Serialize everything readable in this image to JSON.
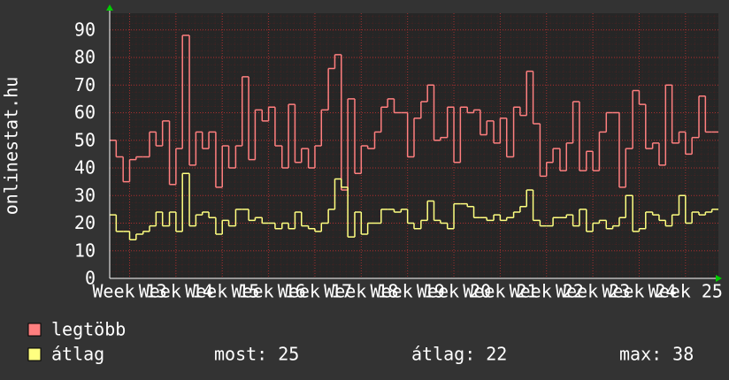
{
  "chart_data": {
    "type": "line",
    "step": true,
    "y_label": "onlinestat.hu",
    "x": [
      12.57,
      12.71,
      12.86,
      13.0,
      13.14,
      13.29,
      13.43,
      13.57,
      13.71,
      13.86,
      14.0,
      14.14,
      14.29,
      14.43,
      14.57,
      14.71,
      14.86,
      15.0,
      15.14,
      15.29,
      15.43,
      15.57,
      15.71,
      15.86,
      16.0,
      16.14,
      16.29,
      16.43,
      16.57,
      16.71,
      16.86,
      17.0,
      17.14,
      17.29,
      17.43,
      17.57,
      17.71,
      17.86,
      18.0,
      18.14,
      18.29,
      18.43,
      18.57,
      18.71,
      18.86,
      19.0,
      19.14,
      19.29,
      19.43,
      19.57,
      19.71,
      19.86,
      20.0,
      20.14,
      20.29,
      20.43,
      20.57,
      20.71,
      20.86,
      21.0,
      21.14,
      21.29,
      21.43,
      21.57,
      21.71,
      21.86,
      22.0,
      22.14,
      22.29,
      22.43,
      22.57,
      22.71,
      22.86,
      23.0,
      23.14,
      23.29,
      23.43,
      23.57,
      23.71,
      23.86,
      24.0,
      24.14,
      24.29,
      24.43,
      24.57,
      24.71,
      24.86,
      25.0,
      25.14,
      25.29,
      25.43,
      25.57
    ],
    "series": [
      {
        "name": "legtöbb",
        "color": "#ff7f7f",
        "values": [
          50,
          44,
          35,
          43,
          44,
          44,
          53,
          48,
          57,
          34,
          47,
          88,
          41,
          53,
          47,
          53,
          33,
          48,
          40,
          48,
          73,
          43,
          61,
          57,
          62,
          48,
          40,
          63,
          42,
          47,
          40,
          48,
          61,
          76,
          81,
          32,
          65,
          38,
          48,
          47,
          53,
          62,
          65,
          60,
          60,
          44,
          58,
          64,
          70,
          50,
          51,
          62,
          42,
          62,
          60,
          61,
          52,
          57,
          49,
          58,
          44,
          62,
          59,
          75,
          56,
          37,
          42,
          47,
          39,
          49,
          64,
          39,
          46,
          39,
          53,
          60,
          60,
          33,
          47,
          68,
          63,
          47,
          49,
          41,
          70,
          49,
          53,
          45,
          51,
          66,
          53,
          53
        ]
      },
      {
        "name": "átlag",
        "color": "#ffff80",
        "values": [
          23,
          17,
          17,
          14,
          16,
          17,
          19,
          24,
          19,
          24,
          17,
          38,
          19,
          23,
          24,
          22,
          16,
          21,
          19,
          25,
          25,
          21,
          22,
          20,
          20,
          18,
          20,
          18,
          24,
          19,
          18,
          17,
          20,
          25,
          36,
          33,
          15,
          24,
          16,
          20,
          20,
          25,
          25,
          24,
          25,
          20,
          18,
          21,
          28,
          21,
          20,
          18,
          27,
          27,
          26,
          22,
          22,
          21,
          23,
          21,
          22,
          24,
          26,
          32,
          21,
          19,
          19,
          22,
          22,
          23,
          19,
          25,
          17,
          20,
          21,
          18,
          19,
          22,
          30,
          17,
          18,
          24,
          23,
          21,
          19,
          23,
          30,
          20,
          24,
          23,
          24,
          25
        ]
      }
    ],
    "xlim": [
      12.57,
      25.71
    ],
    "ylim": [
      0,
      96
    ],
    "yticks": [
      0,
      10,
      20,
      30,
      40,
      50,
      60,
      70,
      80,
      90
    ],
    "xticks": [
      {
        "value": 13,
        "label": "Week 13"
      },
      {
        "value": 14,
        "label": "Week 14"
      },
      {
        "value": 15,
        "label": "Week 15"
      },
      {
        "value": 16,
        "label": "Week 16"
      },
      {
        "value": 17,
        "label": "Week 17"
      },
      {
        "value": 18,
        "label": "Week 18"
      },
      {
        "value": 19,
        "label": "Week 19"
      },
      {
        "value": 20,
        "label": "Week 20"
      },
      {
        "value": 21,
        "label": "Week 21"
      },
      {
        "value": 22,
        "label": "Week 22"
      },
      {
        "value": 23,
        "label": "Week 23"
      },
      {
        "value": 24,
        "label": "Week 24"
      },
      {
        "value": 25,
        "label": "Week 25"
      }
    ],
    "grid": true,
    "stats": [
      {
        "label": "most:",
        "value": 25
      },
      {
        "label": "átlag:",
        "value": 22
      },
      {
        "label": "max:",
        "value": 38
      }
    ]
  }
}
